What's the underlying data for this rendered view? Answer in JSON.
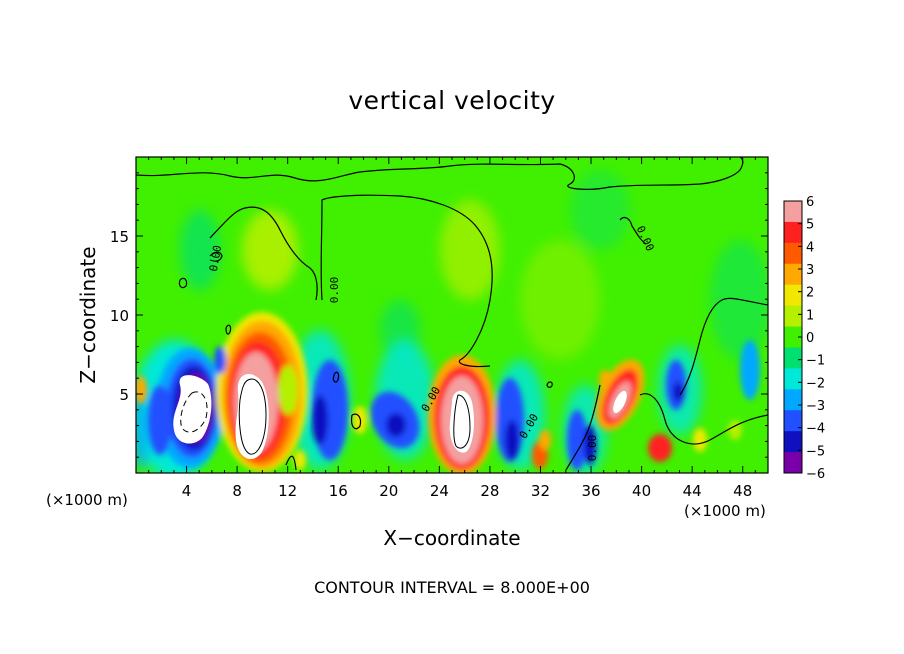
{
  "chart_data": {
    "type": "heatmap",
    "title": "vertical velocity",
    "xlabel": "X−coordinate",
    "ylabel": "Z−coordinate",
    "x_unit": "(×1000 m)",
    "xlim": [
      0,
      50
    ],
    "ylim": [
      0,
      20
    ],
    "x_ticks": [
      4,
      8,
      12,
      16,
      20,
      24,
      28,
      32,
      36,
      40,
      44,
      48
    ],
    "y_ticks": [
      5,
      10,
      15
    ],
    "colorbar": {
      "levels": [
        6,
        5,
        4,
        3,
        2,
        1,
        0,
        -1,
        -2,
        -3,
        -4,
        -5,
        -6
      ],
      "level_labels": [
        "6",
        "5",
        "4",
        "3",
        "2",
        "1",
        "0",
        "−1",
        "−2",
        "−3",
        "−4",
        "−5",
        "−6"
      ],
      "colors": [
        "#f4a0a0",
        "#ff2020",
        "#ff5a00",
        "#ffa800",
        "#f0e800",
        "#b4f000",
        "#40f000",
        "#00e070",
        "#00e8d8",
        "#00a8ff",
        "#2050ff",
        "#1010c0",
        "#7800a8"
      ]
    },
    "background_color": "#40f000",
    "contour_labels": [
      "0.00",
      "0.00",
      "0.00",
      "0.00",
      "0.00",
      "0.00",
      "0.00"
    ],
    "features": [
      {
        "x": 9.5,
        "z": 4.2,
        "w": 32,
        "kind": "updraft"
      },
      {
        "x": 26.3,
        "z": 3.5,
        "w": 32,
        "kind": "updraft"
      },
      {
        "x": 38.5,
        "z": 5.0,
        "w": 8,
        "kind": "updraft"
      },
      {
        "x": 41.0,
        "z": 1.5,
        "w": 5,
        "kind": "updraft"
      },
      {
        "x": 36.5,
        "z": 5.5,
        "w": 4,
        "kind": "updraft"
      },
      {
        "x": 4.2,
        "z": 4.0,
        "w": -32,
        "kind": "downdraft"
      },
      {
        "x": 2.0,
        "z": 2.0,
        "w": -4,
        "kind": "downdraft"
      },
      {
        "x": 15.0,
        "z": 4.0,
        "w": -4,
        "kind": "downdraft"
      },
      {
        "x": 20.5,
        "z": 3.0,
        "w": -5,
        "kind": "downdraft"
      },
      {
        "x": 30.5,
        "z": 3.0,
        "w": -5,
        "kind": "downdraft"
      },
      {
        "x": 34.5,
        "z": 2.0,
        "w": -4,
        "kind": "downdraft"
      },
      {
        "x": 43.0,
        "z": 5.0,
        "w": -4,
        "kind": "downdraft"
      }
    ]
  },
  "footer": "CONTOUR INTERVAL = 8.000E+00"
}
